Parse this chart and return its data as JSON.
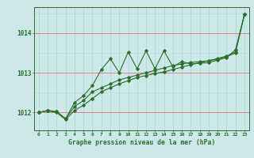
{
  "background_color": "#cce8e8",
  "line_color": "#2d6e2d",
  "title": "Graphe pression niveau de la mer (hPa)",
  "hours": [
    0,
    1,
    2,
    3,
    4,
    5,
    6,
    7,
    8,
    9,
    10,
    11,
    12,
    13,
    14,
    15,
    16,
    17,
    18,
    19,
    20,
    21,
    22,
    23
  ],
  "yticks": [
    1012,
    1013,
    1014
  ],
  "ylim": [
    1011.55,
    1014.65
  ],
  "xlim": [
    -0.5,
    23.5
  ],
  "smooth_line": [
    1012.0,
    1012.04,
    1012.0,
    1011.82,
    1012.05,
    1012.18,
    1012.35,
    1012.52,
    1012.62,
    1012.72,
    1012.8,
    1012.88,
    1012.93,
    1012.98,
    1013.02,
    1013.08,
    1013.14,
    1013.2,
    1013.25,
    1013.3,
    1013.36,
    1013.42,
    1013.52,
    1014.47
  ],
  "zigzag_line": [
    1012.0,
    1012.05,
    1012.02,
    1011.84,
    1012.25,
    1012.42,
    1012.68,
    1013.08,
    1013.35,
    1013.0,
    1013.52,
    1013.1,
    1013.55,
    1013.1,
    1013.55,
    1013.15,
    1013.28,
    1013.22,
    1013.24,
    1013.25,
    1013.32,
    1013.38,
    1013.58,
    1014.47
  ],
  "mid_line": [
    1012.0,
    1012.05,
    1012.02,
    1011.84,
    1012.15,
    1012.3,
    1012.52,
    1012.62,
    1012.72,
    1012.82,
    1012.88,
    1012.94,
    1013.0,
    1013.06,
    1013.12,
    1013.18,
    1013.22,
    1013.26,
    1013.28,
    1013.3,
    1013.34,
    1013.4,
    1013.5,
    1014.47
  ]
}
